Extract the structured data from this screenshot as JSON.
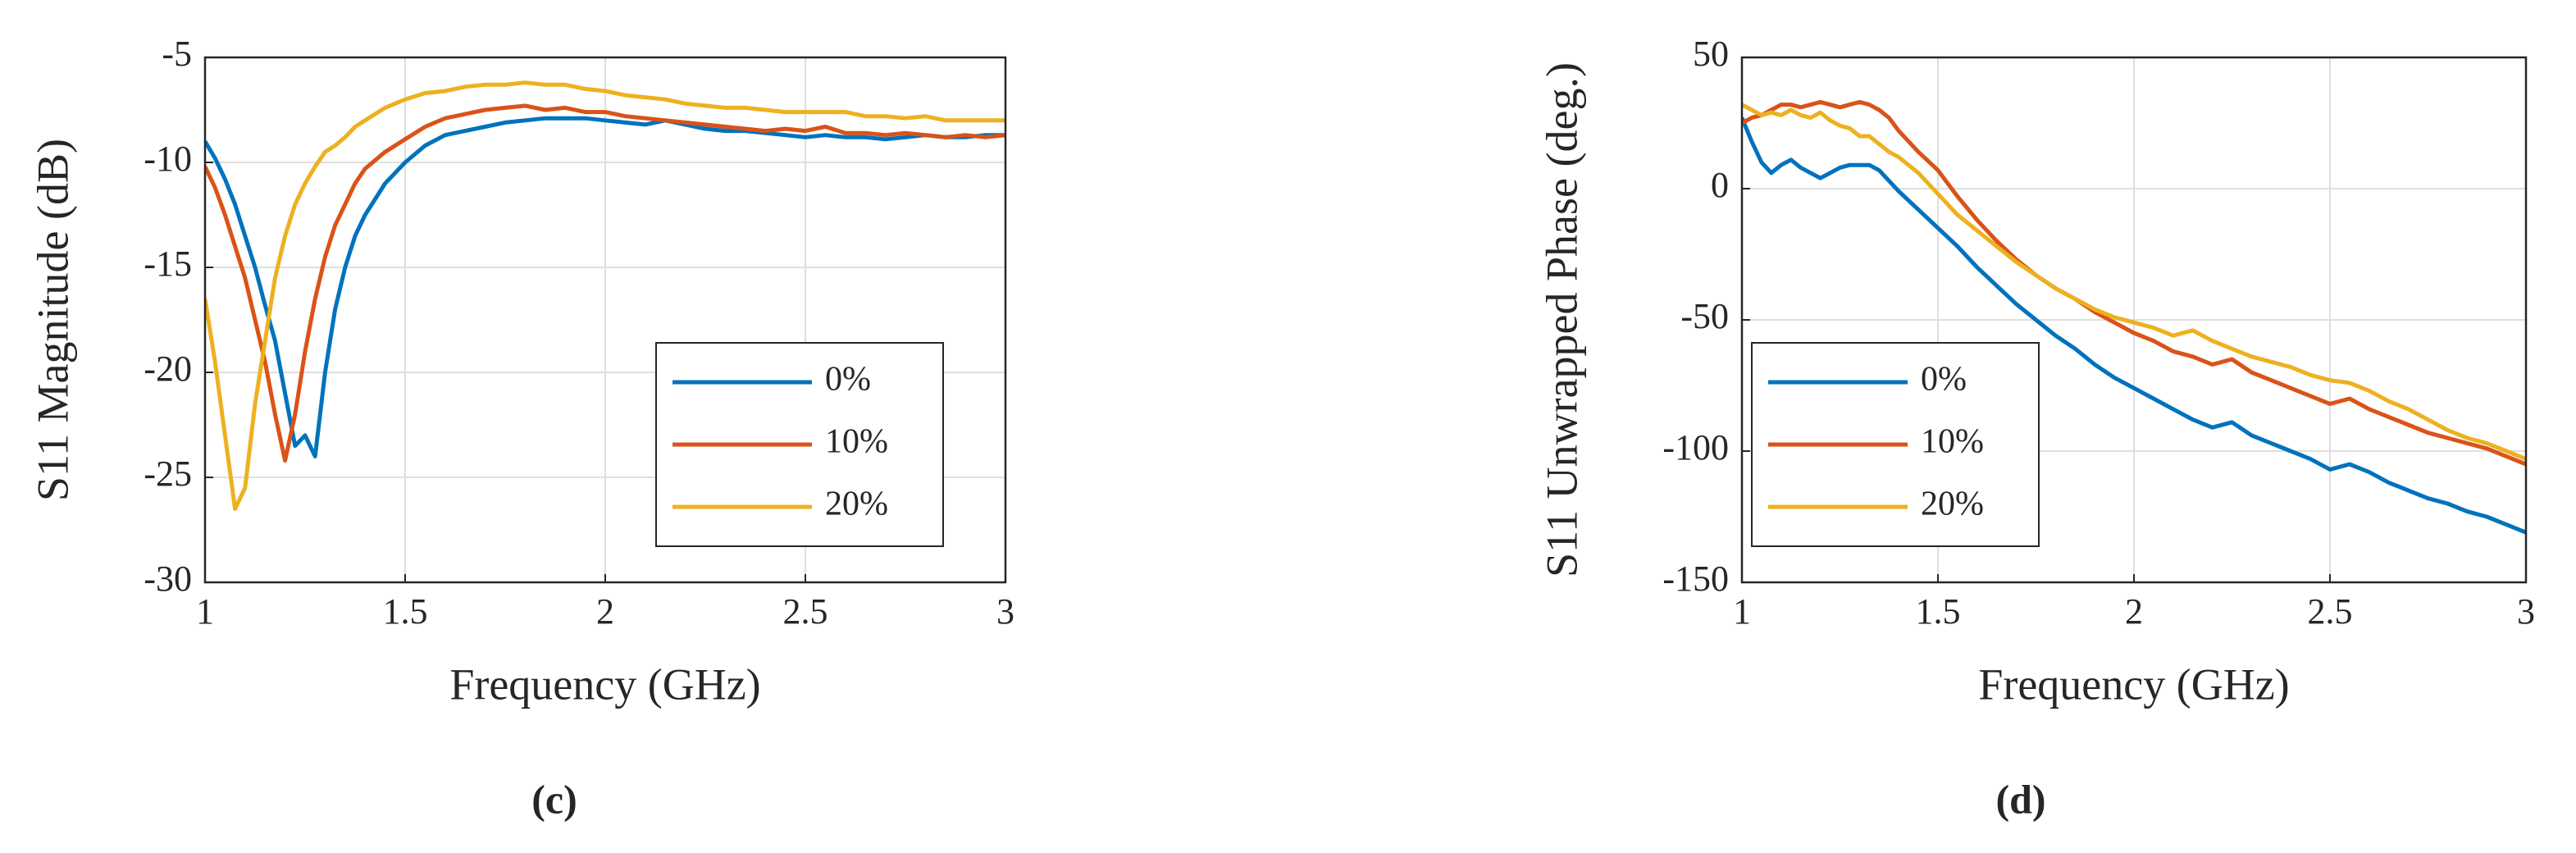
{
  "chart_data": [
    {
      "type": "line",
      "caption": "(c)",
      "xlabel": "Frequency (GHz)",
      "ylabel": "S11  Magnitude (dB)",
      "x": [
        1.0,
        1.025,
        1.05,
        1.075,
        1.1,
        1.125,
        1.15,
        1.175,
        1.2,
        1.225,
        1.25,
        1.275,
        1.3,
        1.325,
        1.35,
        1.375,
        1.4,
        1.45,
        1.5,
        1.55,
        1.6,
        1.65,
        1.7,
        1.75,
        1.8,
        1.85,
        1.9,
        1.95,
        2.0,
        2.05,
        2.1,
        2.15,
        2.2,
        2.25,
        2.3,
        2.35,
        2.4,
        2.45,
        2.5,
        2.55,
        2.6,
        2.65,
        2.7,
        2.75,
        2.8,
        2.85,
        2.9,
        2.95,
        3.0
      ],
      "series": [
        {
          "name": "0%",
          "color": "#0072bd",
          "values": [
            -9,
            -9.8,
            -10.8,
            -12,
            -13.5,
            -15,
            -16.8,
            -18.5,
            -21,
            -23.5,
            -23,
            -24,
            -20,
            -17,
            -15,
            -13.5,
            -12.5,
            -11,
            -10,
            -9.2,
            -8.7,
            -8.5,
            -8.3,
            -8.1,
            -8,
            -7.9,
            -7.9,
            -7.9,
            -8,
            -8.1,
            -8.2,
            -8,
            -8.2,
            -8.4,
            -8.5,
            -8.5,
            -8.6,
            -8.7,
            -8.8,
            -8.7,
            -8.8,
            -8.8,
            -8.9,
            -8.8,
            -8.7,
            -8.8,
            -8.8,
            -8.7,
            -8.7
          ]
        },
        {
          "name": "10%",
          "color": "#d95319",
          "values": [
            -10.2,
            -11.2,
            -12.5,
            -14,
            -15.5,
            -17.5,
            -19.5,
            -22,
            -24.2,
            -22,
            -19,
            -16.5,
            -14.5,
            -13,
            -12,
            -11,
            -10.3,
            -9.5,
            -8.9,
            -8.3,
            -7.9,
            -7.7,
            -7.5,
            -7.4,
            -7.3,
            -7.5,
            -7.4,
            -7.6,
            -7.6,
            -7.8,
            -7.9,
            -8,
            -8.1,
            -8.2,
            -8.3,
            -8.4,
            -8.5,
            -8.4,
            -8.5,
            -8.3,
            -8.6,
            -8.6,
            -8.7,
            -8.6,
            -8.7,
            -8.8,
            -8.7,
            -8.8,
            -8.7
          ]
        },
        {
          "name": "20%",
          "color": "#edb120",
          "values": [
            -16.5,
            -19.5,
            -23,
            -26.5,
            -25.5,
            -21.5,
            -18.5,
            -15.5,
            -13.5,
            -12,
            -11,
            -10.2,
            -9.5,
            -9.2,
            -8.8,
            -8.3,
            -8,
            -7.4,
            -7,
            -6.7,
            -6.6,
            -6.4,
            -6.3,
            -6.3,
            -6.2,
            -6.3,
            -6.3,
            -6.5,
            -6.6,
            -6.8,
            -6.9,
            -7,
            -7.2,
            -7.3,
            -7.4,
            -7.4,
            -7.5,
            -7.6,
            -7.6,
            -7.6,
            -7.6,
            -7.8,
            -7.8,
            -7.9,
            -7.8,
            -8,
            -8,
            -8,
            -8
          ]
        }
      ],
      "xlim": [
        1,
        3
      ],
      "xticks": [
        1,
        1.5,
        2,
        2.5,
        3
      ],
      "ylim": [
        -30,
        -5
      ],
      "yticks": [
        -30,
        -25,
        -20,
        -15,
        -10,
        -5
      ],
      "grid": true,
      "legend": "lower right"
    },
    {
      "type": "line",
      "caption": "(d)",
      "xlabel": "Frequency (GHz)",
      "ylabel": "S11 Unwrapped Phase (deg.)",
      "x": [
        1.0,
        1.025,
        1.05,
        1.075,
        1.1,
        1.125,
        1.15,
        1.175,
        1.2,
        1.225,
        1.25,
        1.275,
        1.3,
        1.325,
        1.35,
        1.375,
        1.4,
        1.45,
        1.5,
        1.55,
        1.6,
        1.65,
        1.7,
        1.75,
        1.8,
        1.85,
        1.9,
        1.95,
        2.0,
        2.05,
        2.1,
        2.15,
        2.2,
        2.25,
        2.3,
        2.35,
        2.4,
        2.45,
        2.5,
        2.55,
        2.6,
        2.65,
        2.7,
        2.75,
        2.8,
        2.85,
        2.9,
        2.95,
        3.0
      ],
      "series": [
        {
          "name": "0%",
          "color": "#0072bd",
          "values": [
            27,
            18,
            10,
            6,
            9,
            11,
            8,
            6,
            4,
            6,
            8,
            9,
            9,
            9,
            7,
            3,
            -1,
            -8,
            -15,
            -22,
            -30,
            -37,
            -44,
            -50,
            -56,
            -61,
            -67,
            -72,
            -76,
            -80,
            -84,
            -88,
            -91,
            -89,
            -94,
            -97,
            -100,
            -103,
            -107,
            -105,
            -108,
            -112,
            -115,
            -118,
            -120,
            -123,
            -125,
            -128,
            -131
          ]
        },
        {
          "name": "10%",
          "color": "#d95319",
          "values": [
            25,
            27,
            28,
            30,
            32,
            32,
            31,
            32,
            33,
            32,
            31,
            32,
            33,
            32,
            30,
            27,
            22,
            14,
            7,
            -3,
            -12,
            -20,
            -27,
            -33,
            -38,
            -42,
            -47,
            -51,
            -55,
            -58,
            -62,
            -64,
            -67,
            -65,
            -70,
            -73,
            -76,
            -79,
            -82,
            -80,
            -84,
            -87,
            -90,
            -93,
            -95,
            -97,
            -99,
            -102,
            -105
          ]
        },
        {
          "name": "20%",
          "color": "#edb120",
          "values": [
            32,
            30,
            28,
            29,
            28,
            30,
            28,
            27,
            29,
            26,
            24,
            23,
            20,
            20,
            17,
            14,
            12,
            6,
            -2,
            -10,
            -16,
            -22,
            -28,
            -33,
            -38,
            -42,
            -46,
            -49,
            -51,
            -53,
            -56,
            -54,
            -58,
            -61,
            -64,
            -66,
            -68,
            -71,
            -73,
            -74,
            -77,
            -81,
            -84,
            -88,
            -92,
            -95,
            -97,
            -100,
            -103
          ]
        }
      ],
      "xlim": [
        1,
        3
      ],
      "xticks": [
        1,
        1.5,
        2,
        2.5,
        3
      ],
      "ylim": [
        -150,
        50
      ],
      "yticks": [
        -150,
        -100,
        -50,
        0,
        50
      ],
      "grid": true,
      "legend": "lower left"
    }
  ]
}
